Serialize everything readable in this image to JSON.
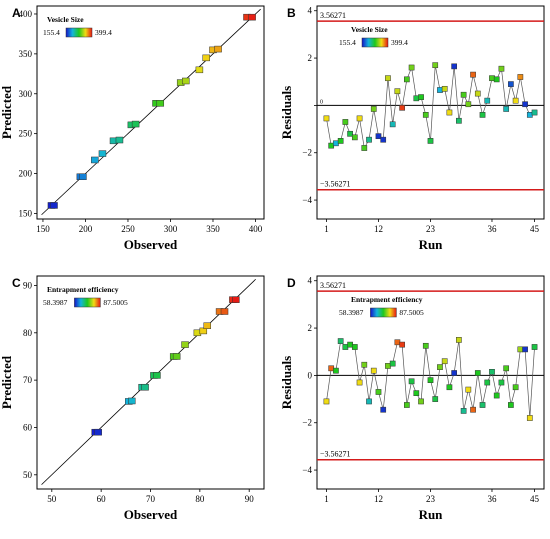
{
  "colors": {
    "low": "#1414c8",
    "mid": "#1ec81e",
    "high": "#e61414",
    "limit_line": "#d41a1a",
    "connector": "#555555"
  },
  "chart_data": [
    {
      "id": "A",
      "panel_letter": "A",
      "type": "scatter",
      "title": "",
      "xlabel": "Observed",
      "ylabel": "Predicted",
      "xlim": [
        143,
        410
      ],
      "ylim": [
        143,
        410
      ],
      "xticks": [
        150,
        200,
        250,
        300,
        350,
        400
      ],
      "yticks": [
        150,
        200,
        250,
        300,
        350,
        400
      ],
      "diagonal": true,
      "legend": {
        "title": "Vesicle Size",
        "min": "155.4",
        "max": "399.4",
        "position": "top-left"
      },
      "color_range": [
        155.4,
        399.4
      ],
      "points": [
        {
          "x": 160,
          "y": 160
        },
        {
          "x": 163,
          "y": 160
        },
        {
          "x": 194,
          "y": 196
        },
        {
          "x": 197,
          "y": 196
        },
        {
          "x": 211,
          "y": 217
        },
        {
          "x": 220,
          "y": 225
        },
        {
          "x": 233,
          "y": 241
        },
        {
          "x": 240,
          "y": 242
        },
        {
          "x": 254,
          "y": 261
        },
        {
          "x": 259,
          "y": 262
        },
        {
          "x": 283,
          "y": 288
        },
        {
          "x": 288,
          "y": 288
        },
        {
          "x": 312,
          "y": 314
        },
        {
          "x": 318,
          "y": 316
        },
        {
          "x": 334,
          "y": 330
        },
        {
          "x": 342,
          "y": 345
        },
        {
          "x": 350,
          "y": 355
        },
        {
          "x": 356,
          "y": 356
        },
        {
          "x": 390,
          "y": 396
        },
        {
          "x": 396,
          "y": 396
        }
      ]
    },
    {
      "id": "B",
      "panel_letter": "B",
      "type": "line",
      "title": "",
      "xlabel": "Run",
      "ylabel": "Residuals",
      "xlim": [
        -1,
        47
      ],
      "ylim": [
        -4.8,
        4.2
      ],
      "xticks": [
        1,
        12,
        23,
        36,
        45
      ],
      "xtick_labels": [
        "1",
        "12",
        "23",
        "36",
        "45"
      ],
      "yticks": [
        -4,
        -2,
        0,
        2,
        4
      ],
      "ytick_labels": [
        "-4",
        "-2",
        "",
        "2",
        "4"
      ],
      "zero_label": "0",
      "limits": [
        3.56271,
        -3.56271
      ],
      "limit_labels": [
        "3.56271",
        "-3.56271"
      ],
      "legend": {
        "title": "Vesicle Size",
        "min": "155.4",
        "max": "399.4",
        "position": "top-center"
      },
      "runs": [
        1,
        2,
        3,
        4,
        5,
        6,
        7,
        8,
        9,
        10,
        11,
        12,
        13,
        14,
        15,
        16,
        17,
        18,
        19,
        20,
        21,
        22,
        23,
        24,
        25,
        26,
        27,
        28,
        29,
        30,
        31,
        32,
        33,
        34,
        35,
        36,
        37,
        38,
        39,
        40,
        41,
        42,
        43,
        44,
        45
      ],
      "residuals": [
        -0.55,
        -1.7,
        -1.6,
        -1.5,
        -0.7,
        -1.2,
        -1.35,
        -0.55,
        -1.8,
        -1.45,
        -0.15,
        -1.3,
        -1.45,
        1.15,
        -0.8,
        0.6,
        -0.1,
        1.1,
        1.6,
        0.3,
        0.35,
        -0.4,
        -1.5,
        1.7,
        0.65,
        0.7,
        -0.3,
        1.65,
        -0.65,
        0.45,
        0.05,
        1.3,
        0.5,
        -0.4,
        0.2,
        1.15,
        1.1,
        1.55,
        -0.15,
        0.9,
        0.2,
        1.2,
        0.05,
        -0.4,
        -0.3
      ],
      "point_colors": [
        0.75,
        0.5,
        0.25,
        0.5,
        0.55,
        0.45,
        0.55,
        0.75,
        0.55,
        0.35,
        0.6,
        0.05,
        0.05,
        0.7,
        0.3,
        0.7,
        0.95,
        0.55,
        0.6,
        0.45,
        0.5,
        0.55,
        0.45,
        0.6,
        0.25,
        0.7,
        0.75,
        0.05,
        0.4,
        0.55,
        0.6,
        0.9,
        0.7,
        0.45,
        0.3,
        0.55,
        0.5,
        0.6,
        0.3,
        0.1,
        0.75,
        0.85,
        0.05,
        0.25,
        0.35
      ]
    },
    {
      "id": "C",
      "panel_letter": "C",
      "type": "scatter",
      "title": "",
      "xlabel": "Observed",
      "ylabel": "Predicted",
      "xlim": [
        47,
        93
      ],
      "ylim": [
        47,
        92
      ],
      "xticks": [
        50,
        60,
        70,
        80,
        90
      ],
      "yticks": [
        50,
        60,
        70,
        80,
        90
      ],
      "diagonal": true,
      "legend": {
        "title": "Entrapment efficiency",
        "min": "58.3987",
        "max": "87.5005",
        "position": "top-left"
      },
      "color_range": [
        58.3987,
        87.5005
      ],
      "points": [
        {
          "x": 58.8,
          "y": 59
        },
        {
          "x": 59.4,
          "y": 59
        },
        {
          "x": 65.6,
          "y": 65.5
        },
        {
          "x": 66.2,
          "y": 65.6
        },
        {
          "x": 68.3,
          "y": 68.5
        },
        {
          "x": 68.9,
          "y": 68.5
        },
        {
          "x": 70.7,
          "y": 71
        },
        {
          "x": 71.3,
          "y": 71
        },
        {
          "x": 74.7,
          "y": 75
        },
        {
          "x": 75.3,
          "y": 75
        },
        {
          "x": 77,
          "y": 77.5
        },
        {
          "x": 79.5,
          "y": 80
        },
        {
          "x": 80.7,
          "y": 80.4
        },
        {
          "x": 81.5,
          "y": 81.5
        },
        {
          "x": 84,
          "y": 84.5
        },
        {
          "x": 85,
          "y": 84.5
        },
        {
          "x": 86.7,
          "y": 87
        },
        {
          "x": 87.3,
          "y": 87
        }
      ]
    },
    {
      "id": "D",
      "panel_letter": "D",
      "type": "line",
      "title": "",
      "xlabel": "Run",
      "ylabel": "Residuals",
      "xlim": [
        -1,
        47
      ],
      "ylim": [
        -4.8,
        4.2
      ],
      "xticks": [
        1,
        12,
        23,
        36,
        45
      ],
      "xtick_labels": [
        "1",
        "12",
        "23",
        "36",
        "45"
      ],
      "yticks": [
        -4,
        -2,
        0,
        2,
        4
      ],
      "ytick_labels": [
        "-4",
        "-2",
        "0",
        "2",
        "4"
      ],
      "limits": [
        3.56271,
        -3.56271
      ],
      "limit_labels": [
        "3.56271",
        "-3.56271"
      ],
      "legend": {
        "title": "Entrapment efficiency",
        "min": "58.3987",
        "max": "87.5005",
        "position": "top-center"
      },
      "runs": [
        1,
        2,
        3,
        4,
        5,
        6,
        7,
        8,
        9,
        10,
        11,
        12,
        13,
        14,
        15,
        16,
        17,
        18,
        19,
        20,
        21,
        22,
        23,
        24,
        25,
        26,
        27,
        28,
        29,
        30,
        31,
        32,
        33,
        34,
        35,
        36,
        37,
        38,
        39,
        40,
        41,
        42,
        43,
        44,
        45
      ],
      "residuals": [
        -1.1,
        0.3,
        0.2,
        1.45,
        1.2,
        1.3,
        1.2,
        -0.3,
        0.45,
        -1.1,
        0.2,
        -0.7,
        -1.45,
        0.4,
        0.5,
        1.4,
        1.3,
        -1.25,
        -0.25,
        -0.75,
        -1.1,
        1.25,
        -0.2,
        -1.0,
        0.35,
        0.6,
        -0.5,
        0.1,
        1.5,
        -1.5,
        -0.6,
        -1.45,
        0.1,
        -1.25,
        -0.3,
        0.15,
        -0.85,
        -0.3,
        0.3,
        -1.25,
        -0.5,
        1.1,
        1.1,
        -1.8,
        1.2
      ],
      "point_colors": [
        0.75,
        0.9,
        0.5,
        0.4,
        0.45,
        0.5,
        0.5,
        0.75,
        0.6,
        0.3,
        0.75,
        0.55,
        0.05,
        0.6,
        0.45,
        0.9,
        0.95,
        0.55,
        0.45,
        0.5,
        0.6,
        0.55,
        0.5,
        0.45,
        0.6,
        0.7,
        0.5,
        0.05,
        0.7,
        0.35,
        0.75,
        0.9,
        0.5,
        0.4,
        0.45,
        0.4,
        0.5,
        0.45,
        0.55,
        0.5,
        0.55,
        0.65,
        0.05,
        0.75,
        0.45
      ]
    }
  ]
}
